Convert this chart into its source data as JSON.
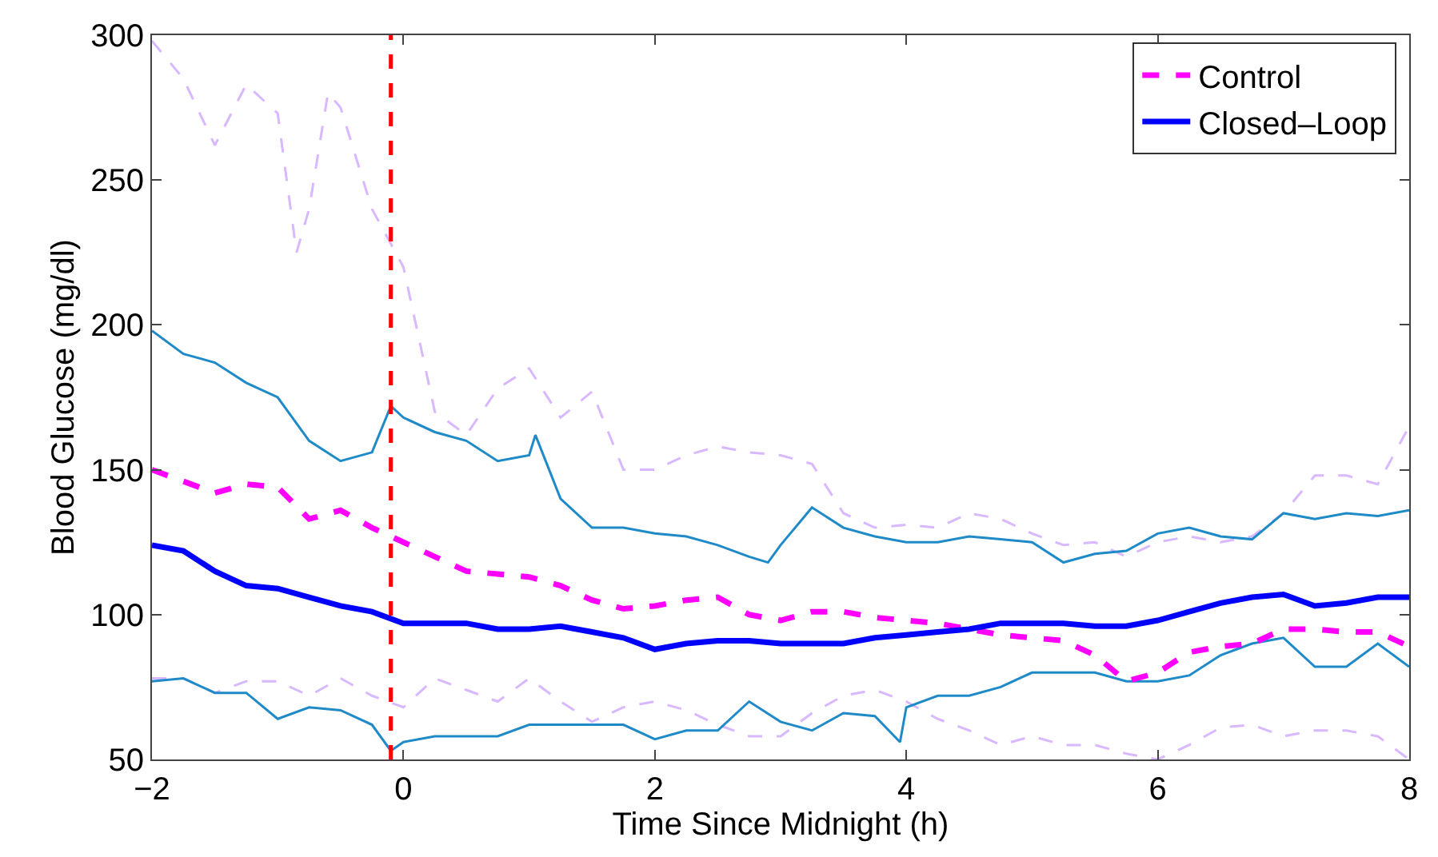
{
  "chart_data": {
    "type": "line",
    "xlabel": "Time Since Midnight (h)",
    "ylabel": "Blood Glucose (mg/dl)",
    "x": [
      -2,
      -1.75,
      -1.5,
      -1.25,
      -1,
      -0.75,
      -0.5,
      -0.25,
      0,
      0.25,
      0.5,
      0.75,
      1,
      1.25,
      1.5,
      1.75,
      2,
      2.25,
      2.5,
      2.75,
      3,
      3.25,
      3.5,
      3.75,
      4,
      4.25,
      4.5,
      4.75,
      5,
      5.25,
      5.5,
      5.75,
      6,
      6.25,
      6.5,
      6.75,
      7,
      7.25,
      7.5,
      7.75,
      8
    ],
    "xlim": [
      -2,
      8
    ],
    "xticks": [
      -2,
      0,
      2,
      4,
      6,
      8
    ],
    "ylim": [
      50,
      300
    ],
    "yticks": [
      50,
      100,
      150,
      200,
      250,
      300
    ],
    "legend": "top right",
    "series": [
      {
        "color": "#d8b8ff",
        "line_style": "dashed",
        "x": [
          -2,
          -1.75,
          -1.5,
          -1.25,
          -1,
          -0.85,
          -0.75,
          -0.6,
          -0.5,
          -0.25,
          0,
          0.25,
          0.5,
          0.75,
          1,
          1.25,
          1.5,
          1.75,
          2,
          2.25,
          2.5,
          2.75,
          3,
          3.25,
          3.5,
          3.75,
          4,
          4.25,
          4.5,
          4.75,
          5,
          5.25,
          5.5,
          5.75,
          6,
          6.25,
          6.5,
          6.75,
          7,
          7.25,
          7.5,
          7.75,
          8
        ],
        "values": [
          298,
          285,
          262,
          283,
          273,
          225,
          240,
          280,
          275,
          240,
          220,
          170,
          162,
          178,
          185,
          168,
          177,
          150,
          150,
          155,
          158,
          156,
          155,
          152,
          135,
          130,
          131,
          130,
          135,
          133,
          128,
          124,
          125,
          120,
          125,
          127,
          125,
          127,
          135,
          148,
          148,
          145,
          165
        ]
      },
      {
        "color": "#d8b8ff",
        "line_style": "dashed",
        "values": [
          78,
          78,
          73,
          77,
          77,
          72,
          78,
          72,
          68,
          78,
          74,
          70,
          78,
          70,
          63,
          68,
          70,
          67,
          62,
          58,
          58,
          66,
          72,
          74,
          70,
          64,
          60,
          55,
          58,
          55,
          55,
          52,
          50,
          55,
          61,
          62,
          58,
          60,
          60,
          58,
          50
        ]
      },
      {
        "color": "#1f8ac8",
        "line_style": "solid",
        "x": [
          -2,
          -1.75,
          -1.5,
          -1.25,
          -1,
          -0.75,
          -0.5,
          -0.25,
          -0.1,
          0,
          0.25,
          0.5,
          0.75,
          1,
          1.05,
          1.25,
          1.5,
          1.75,
          2,
          2.25,
          2.5,
          2.75,
          2.9,
          3,
          3.25,
          3.5,
          3.75,
          4,
          4.25,
          4.5,
          4.75,
          5,
          5.25,
          5.5,
          5.75,
          6,
          6.25,
          6.5,
          6.75,
          7,
          7.25,
          7.5,
          7.75,
          8
        ],
        "values": [
          198,
          190,
          187,
          180,
          175,
          160,
          153,
          156,
          172,
          168,
          163,
          160,
          153,
          155,
          162,
          140,
          130,
          130,
          128,
          127,
          124,
          120,
          118,
          124,
          137,
          130,
          127,
          125,
          125,
          127,
          126,
          125,
          118,
          121,
          122,
          128,
          130,
          127,
          126,
          135,
          133,
          135,
          134,
          136
        ]
      },
      {
        "color": "#1f8ac8",
        "line_style": "solid",
        "x": [
          -2,
          -1.75,
          -1.5,
          -1.25,
          -1,
          -0.75,
          -0.5,
          -0.25,
          -0.1,
          0,
          0.25,
          0.5,
          0.75,
          1,
          1.25,
          1.5,
          1.75,
          2,
          2.25,
          2.5,
          2.75,
          3,
          3.25,
          3.5,
          3.75,
          3.95,
          4,
          4.25,
          4.5,
          4.75,
          5,
          5.25,
          5.5,
          5.75,
          6,
          6.25,
          6.5,
          6.75,
          7,
          7.25,
          7.5,
          7.75,
          8
        ],
        "values": [
          77,
          78,
          73,
          73,
          64,
          68,
          67,
          62,
          53,
          56,
          58,
          58,
          58,
          62,
          62,
          62,
          62,
          57,
          60,
          60,
          70,
          63,
          60,
          66,
          65,
          56,
          68,
          72,
          72,
          75,
          80,
          80,
          80,
          77,
          77,
          79,
          86,
          90,
          92,
          82,
          82,
          90,
          82
        ]
      },
      {
        "name": "Control",
        "color": "#ff00ff",
        "line_style": "dashed",
        "values": [
          150,
          146,
          142,
          145,
          144,
          133,
          136,
          130,
          125,
          120,
          115,
          114,
          113,
          110,
          105,
          102,
          103,
          105,
          106,
          100,
          98,
          101,
          101,
          99,
          98,
          97,
          95,
          93,
          92,
          91,
          86,
          77,
          80,
          87,
          89,
          90,
          95,
          95,
          94,
          94,
          89
        ]
      },
      {
        "name": "Closed–Loop",
        "color": "#0000ff",
        "line_style": "solid",
        "values": [
          124,
          122,
          115,
          110,
          109,
          106,
          103,
          101,
          97,
          97,
          97,
          95,
          95,
          96,
          94,
          92,
          88,
          90,
          91,
          91,
          90,
          90,
          90,
          92,
          93,
          94,
          95,
          97,
          97,
          97,
          96,
          96,
          98,
          101,
          104,
          106,
          107,
          103,
          104,
          106,
          106
        ]
      }
    ],
    "ref_lines": [
      {
        "axis": "x",
        "value": -0.1,
        "color": "#ff0000",
        "line_style": "dashed"
      }
    ]
  }
}
